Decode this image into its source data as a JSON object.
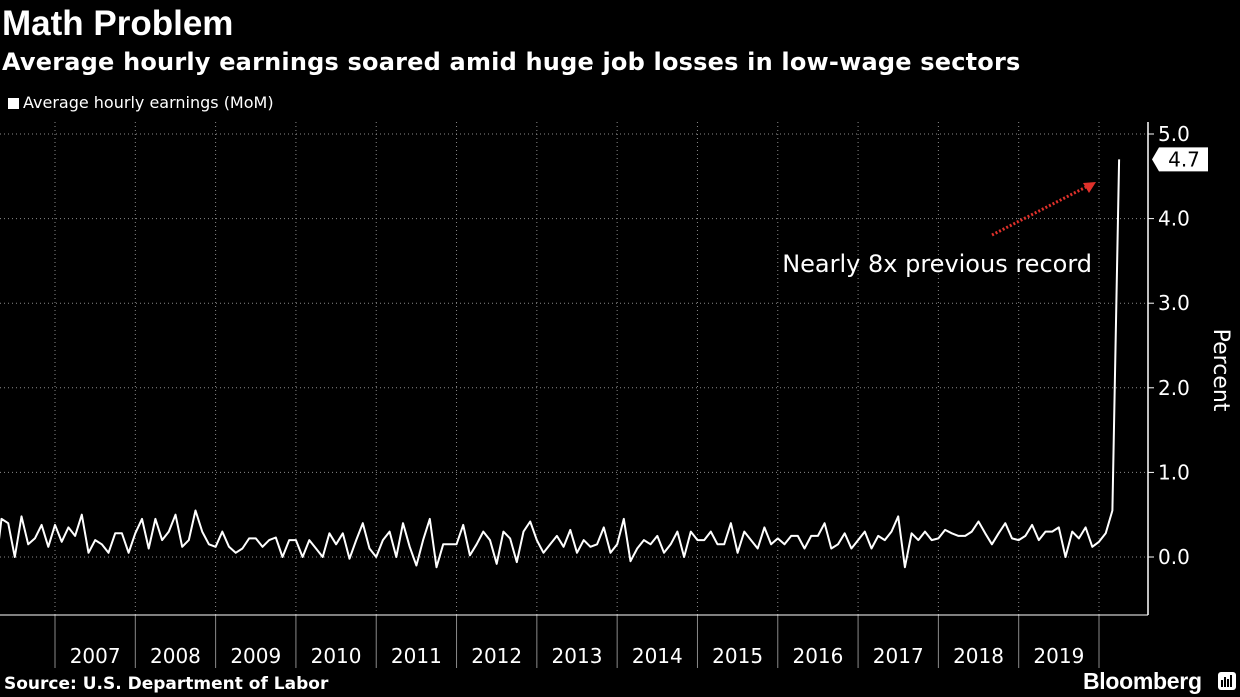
{
  "header": {
    "title": "Math Problem",
    "subtitle": "Average hourly earnings soared amid huge job losses in low-wage sectors"
  },
  "footer": {
    "source": "Source: U.S. Department of Labor",
    "brand": "Bloomberg",
    "brand_icon": "bloomberg-terminal-icon"
  },
  "colors": {
    "background": "#000000",
    "line": "#ffffff",
    "annotation_arrow": "#e0312b"
  },
  "chart_data": {
    "type": "line",
    "title": "Math Problem",
    "subtitle": "Average hourly earnings soared amid huge job losses in low-wage sectors",
    "legend": [
      "Average hourly earnings (MoM)"
    ],
    "legend_position": "top-left",
    "ylabel": "Percent",
    "y_axis_side": "right",
    "ylim": [
      -0.5,
      5.1
    ],
    "yticks": [
      "5.0",
      "4.0",
      "3.0",
      "2.0",
      "1.0",
      "0.0"
    ],
    "ytick_values": [
      5.0,
      4.0,
      3.0,
      2.0,
      1.0,
      0.0
    ],
    "x_axis": {
      "type": "time",
      "start": "2006-03",
      "end": "2020-04",
      "year_labels": [
        "2007",
        "2008",
        "2009",
        "2010",
        "2011",
        "2012",
        "2013",
        "2014",
        "2015",
        "2016",
        "2017",
        "2018",
        "2019"
      ]
    },
    "grid": "vertical dotted at year boundaries, horizontal dotted at y ticks",
    "last_value_label": "4.7",
    "annotation": "Nearly 8x previous record",
    "series": [
      {
        "name": "Average hourly earnings (MoM)",
        "x": [
          "2006-03",
          "2006-04",
          "2006-05",
          "2006-06",
          "2006-07",
          "2006-08",
          "2006-09",
          "2006-10",
          "2006-11",
          "2006-12",
          "2007-01",
          "2007-02",
          "2007-03",
          "2007-04",
          "2007-05",
          "2007-06",
          "2007-07",
          "2007-08",
          "2007-09",
          "2007-10",
          "2007-11",
          "2007-12",
          "2008-01",
          "2008-02",
          "2008-03",
          "2008-04",
          "2008-05",
          "2008-06",
          "2008-07",
          "2008-08",
          "2008-09",
          "2008-10",
          "2008-11",
          "2008-12",
          "2009-01",
          "2009-02",
          "2009-03",
          "2009-04",
          "2009-05",
          "2009-06",
          "2009-07",
          "2009-08",
          "2009-09",
          "2009-10",
          "2009-11",
          "2009-12",
          "2010-01",
          "2010-02",
          "2010-03",
          "2010-04",
          "2010-05",
          "2010-06",
          "2010-07",
          "2010-08",
          "2010-09",
          "2010-10",
          "2010-11",
          "2010-12",
          "2011-01",
          "2011-02",
          "2011-03",
          "2011-04",
          "2011-05",
          "2011-06",
          "2011-07",
          "2011-08",
          "2011-09",
          "2011-10",
          "2011-11",
          "2011-12",
          "2012-01",
          "2012-02",
          "2012-03",
          "2012-04",
          "2012-05",
          "2012-06",
          "2012-07",
          "2012-08",
          "2012-09",
          "2012-10",
          "2012-11",
          "2012-12",
          "2013-01",
          "2013-02",
          "2013-03",
          "2013-04",
          "2013-05",
          "2013-06",
          "2013-07",
          "2013-08",
          "2013-09",
          "2013-10",
          "2013-11",
          "2013-12",
          "2014-01",
          "2014-02",
          "2014-03",
          "2014-04",
          "2014-05",
          "2014-06",
          "2014-07",
          "2014-08",
          "2014-09",
          "2014-10",
          "2014-11",
          "2014-12",
          "2015-01",
          "2015-02",
          "2015-03",
          "2015-04",
          "2015-05",
          "2015-06",
          "2015-07",
          "2015-08",
          "2015-09",
          "2015-10",
          "2015-11",
          "2015-12",
          "2016-01",
          "2016-02",
          "2016-03",
          "2016-04",
          "2016-05",
          "2016-06",
          "2016-07",
          "2016-08",
          "2016-09",
          "2016-10",
          "2016-11",
          "2016-12",
          "2017-01",
          "2017-02",
          "2017-03",
          "2017-04",
          "2017-05",
          "2017-06",
          "2017-07",
          "2017-08",
          "2017-09",
          "2017-10",
          "2017-11",
          "2017-12",
          "2018-01",
          "2018-02",
          "2018-03",
          "2018-04",
          "2018-05",
          "2018-06",
          "2018-07",
          "2018-08",
          "2018-09",
          "2018-10",
          "2018-11",
          "2018-12",
          "2019-01",
          "2019-02",
          "2019-03",
          "2019-04",
          "2019-05",
          "2019-06",
          "2019-07",
          "2019-08",
          "2019-09",
          "2019-10",
          "2019-11",
          "2019-12",
          "2020-01",
          "2020-02",
          "2020-03",
          "2020-04"
        ],
        "values": [
          0.62,
          -0.2,
          0.45,
          0.4,
          0.0,
          0.48,
          0.15,
          0.22,
          0.38,
          0.12,
          0.38,
          0.18,
          0.35,
          0.25,
          0.5,
          0.05,
          0.2,
          0.15,
          0.05,
          0.28,
          0.28,
          0.05,
          0.28,
          0.45,
          0.1,
          0.45,
          0.2,
          0.3,
          0.5,
          0.12,
          0.2,
          0.55,
          0.3,
          0.15,
          0.12,
          0.3,
          0.12,
          0.05,
          0.1,
          0.22,
          0.22,
          0.12,
          0.2,
          0.23,
          0.0,
          0.2,
          0.2,
          0.0,
          0.2,
          0.1,
          0.0,
          0.28,
          0.15,
          0.28,
          -0.02,
          0.2,
          0.4,
          0.1,
          0.0,
          0.2,
          0.3,
          0.0,
          0.4,
          0.12,
          -0.1,
          0.2,
          0.45,
          -0.12,
          0.15,
          0.15,
          0.15,
          0.38,
          0.02,
          0.15,
          0.3,
          0.2,
          -0.08,
          0.3,
          0.22,
          -0.06,
          0.3,
          0.42,
          0.2,
          0.05,
          0.15,
          0.25,
          0.12,
          0.32,
          0.05,
          0.2,
          0.12,
          0.15,
          0.35,
          0.05,
          0.15,
          0.45,
          -0.05,
          0.1,
          0.2,
          0.15,
          0.25,
          0.05,
          0.15,
          0.3,
          0.0,
          0.3,
          0.2,
          0.2,
          0.3,
          0.15,
          0.15,
          0.4,
          0.05,
          0.3,
          0.2,
          0.1,
          0.35,
          0.15,
          0.22,
          0.15,
          0.25,
          0.25,
          0.1,
          0.25,
          0.25,
          0.4,
          0.1,
          0.15,
          0.28,
          0.1,
          0.2,
          0.3,
          0.1,
          0.25,
          0.2,
          0.3,
          0.48,
          -0.12,
          0.28,
          0.2,
          0.3,
          0.2,
          0.22,
          0.32,
          0.28,
          0.25,
          0.25,
          0.3,
          0.42,
          0.28,
          0.15,
          0.28,
          0.4,
          0.22,
          0.2,
          0.25,
          0.38,
          0.2,
          0.3,
          0.3,
          0.35,
          0.0,
          0.3,
          0.22,
          0.35,
          0.12,
          0.18,
          0.28,
          0.55,
          4.7
        ]
      }
    ]
  }
}
